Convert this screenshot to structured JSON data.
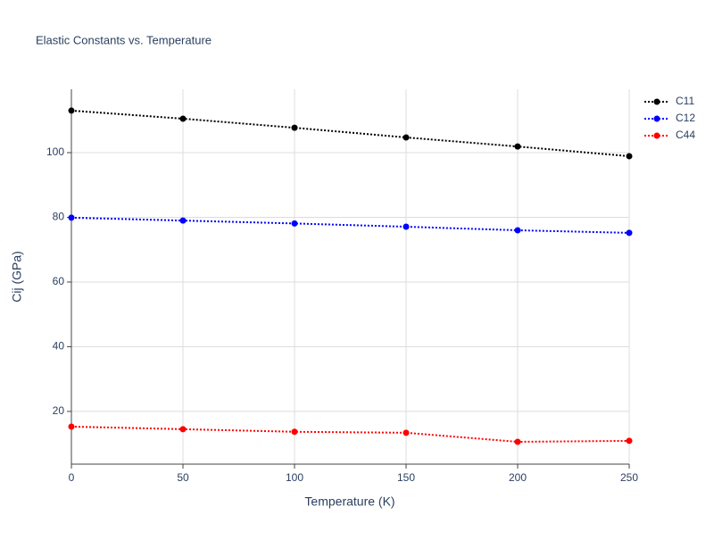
{
  "chart_data": {
    "type": "line",
    "title": "Elastic Constants vs. Temperature",
    "x_label": "Temperature (K)",
    "y_label": "Cij (GPa)",
    "x": [
      0,
      50,
      100,
      150,
      200,
      250
    ],
    "series": [
      {
        "name": "C11",
        "color": "#000000",
        "values": [
          113.0,
          110.5,
          107.7,
          104.7,
          101.9,
          98.9
        ]
      },
      {
        "name": "C12",
        "color": "#0000ff",
        "values": [
          79.9,
          79.0,
          78.1,
          77.1,
          76.0,
          75.2
        ]
      },
      {
        "name": "C44",
        "color": "#ff0000",
        "values": [
          15.3,
          14.5,
          13.7,
          13.4,
          10.6,
          10.9
        ]
      }
    ],
    "xlim": [
      0,
      250
    ],
    "xticks": [
      0,
      50,
      100,
      150,
      200,
      250
    ],
    "ylim": [
      3.7,
      119.6
    ],
    "yticks": [
      20,
      40,
      60,
      80,
      100
    ],
    "grid": true,
    "line_style": "dotted",
    "legend": "right"
  }
}
